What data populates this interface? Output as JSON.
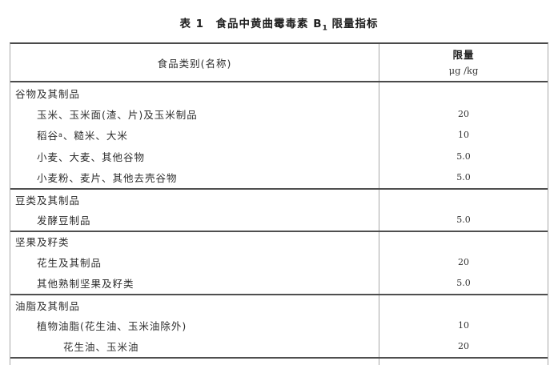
{
  "title": {
    "prefix": "表 1　食品中黄曲霉毒素 B",
    "sub": "1",
    "suffix": " 限量指标"
  },
  "header": {
    "food_col": "食品类别(名称)",
    "limit_label": "限量",
    "limit_unit": "μg /kg"
  },
  "rows": [
    {
      "label": "谷物及其制品",
      "value": ""
    },
    {
      "label": "玉米、玉米面(渣、片)及玉米制品",
      "value": "20"
    },
    {
      "prefix": "稻谷",
      "sup": "a",
      "label": "、糙米、大米",
      "value": "10"
    },
    {
      "label": "小麦、大麦、其他谷物",
      "value": "5.0"
    },
    {
      "label": "小麦粉、麦片、其他去壳谷物",
      "value": "5.0"
    },
    {
      "label": "豆类及其制品",
      "value": ""
    },
    {
      "label": "发酵豆制品",
      "value": "5.0"
    },
    {
      "label": "坚果及籽类",
      "value": ""
    },
    {
      "label": "花生及其制品",
      "value": "20"
    },
    {
      "label": "其他熟制坚果及籽类",
      "value": "5.0"
    },
    {
      "label": "油脂及其制品",
      "value": ""
    },
    {
      "label": "植物油脂(花生油、玉米油除外)",
      "value": "10"
    },
    {
      "label": "花生油、玉米油",
      "value": "20"
    }
  ],
  "colors": {
    "line_dark": "#4a4a4a",
    "line_light": "#a8a8a8",
    "text": "#2e2e2e"
  }
}
